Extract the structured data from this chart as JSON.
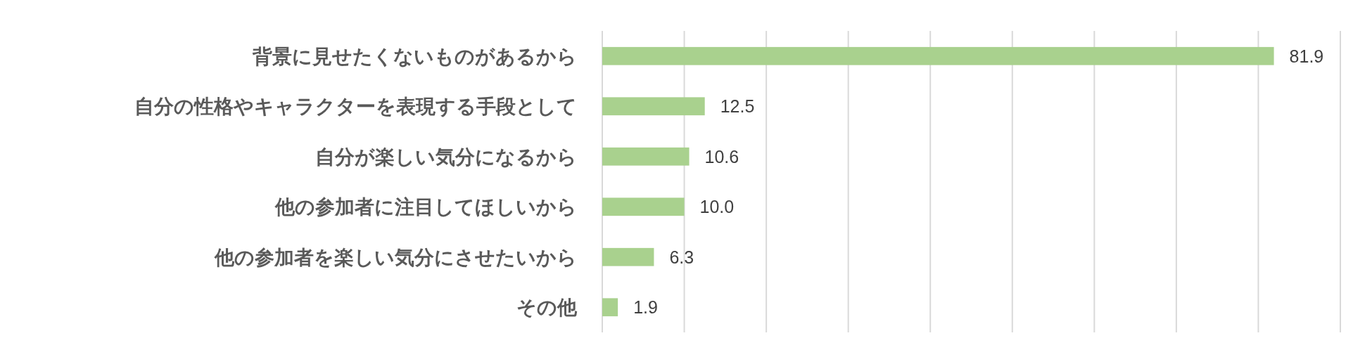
{
  "chart_data": {
    "type": "bar",
    "orientation": "horizontal",
    "categories": [
      "背景に見せたくないものがあるから",
      "自分の性格やキャラクターを表現する手段として",
      "自分が楽しい気分になるから",
      "他の参加者に注目してほしいから",
      "他の参加者を楽しい気分にさせたいから",
      "その他"
    ],
    "values": [
      81.9,
      12.5,
      10.6,
      10.0,
      6.3,
      1.9
    ],
    "value_labels": [
      "81.9",
      "12.5",
      "10.6",
      "10.0",
      "6.3",
      "1.9"
    ],
    "color": "#a9d18e",
    "xlim": [
      0,
      90
    ],
    "xticks": [
      {
        "value": 0,
        "label": null
      },
      {
        "value": 10,
        "label": null
      },
      {
        "value": 20,
        "label": null
      },
      {
        "value": 30,
        "label": null
      },
      {
        "value": 40,
        "label": null
      },
      {
        "value": 50,
        "label": null
      },
      {
        "value": 60,
        "label": null
      },
      {
        "value": 70,
        "label": null
      },
      {
        "value": 80,
        "label": null
      },
      {
        "value": 90,
        "label": null
      }
    ],
    "grid": "x",
    "tick_labels": "y"
  }
}
